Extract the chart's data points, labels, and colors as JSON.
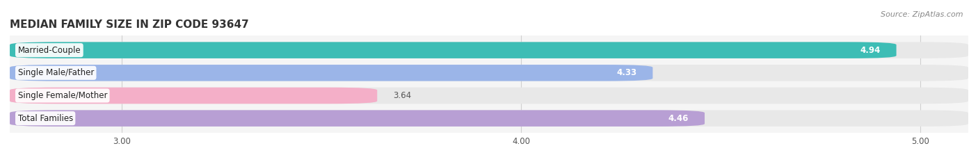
{
  "title": "MEDIAN FAMILY SIZE IN ZIP CODE 93647",
  "source": "Source: ZipAtlas.com",
  "categories": [
    "Married-Couple",
    "Single Male/Father",
    "Single Female/Mother",
    "Total Families"
  ],
  "values": [
    4.94,
    4.33,
    3.64,
    4.46
  ],
  "bar_colors": [
    "#3dbdb5",
    "#9bb5e8",
    "#f4afc8",
    "#b89fd4"
  ],
  "bar_bg_color": "#e8e8e8",
  "bar_bg_color2": "#f0f0f0",
  "xlim": [
    2.72,
    5.12
  ],
  "xticks": [
    3.0,
    4.0,
    5.0
  ],
  "xtick_labels": [
    "3.00",
    "4.00",
    "5.00"
  ],
  "label_fontsize": 8.5,
  "value_fontsize": 8.5,
  "title_fontsize": 11,
  "source_fontsize": 8,
  "bar_height": 0.72,
  "bar_gap": 0.28,
  "fig_bg_color": "#ffffff",
  "plot_bg_color": "#f5f5f5",
  "grid_color": "#d0d0d0",
  "value_outside_color": "#555555"
}
